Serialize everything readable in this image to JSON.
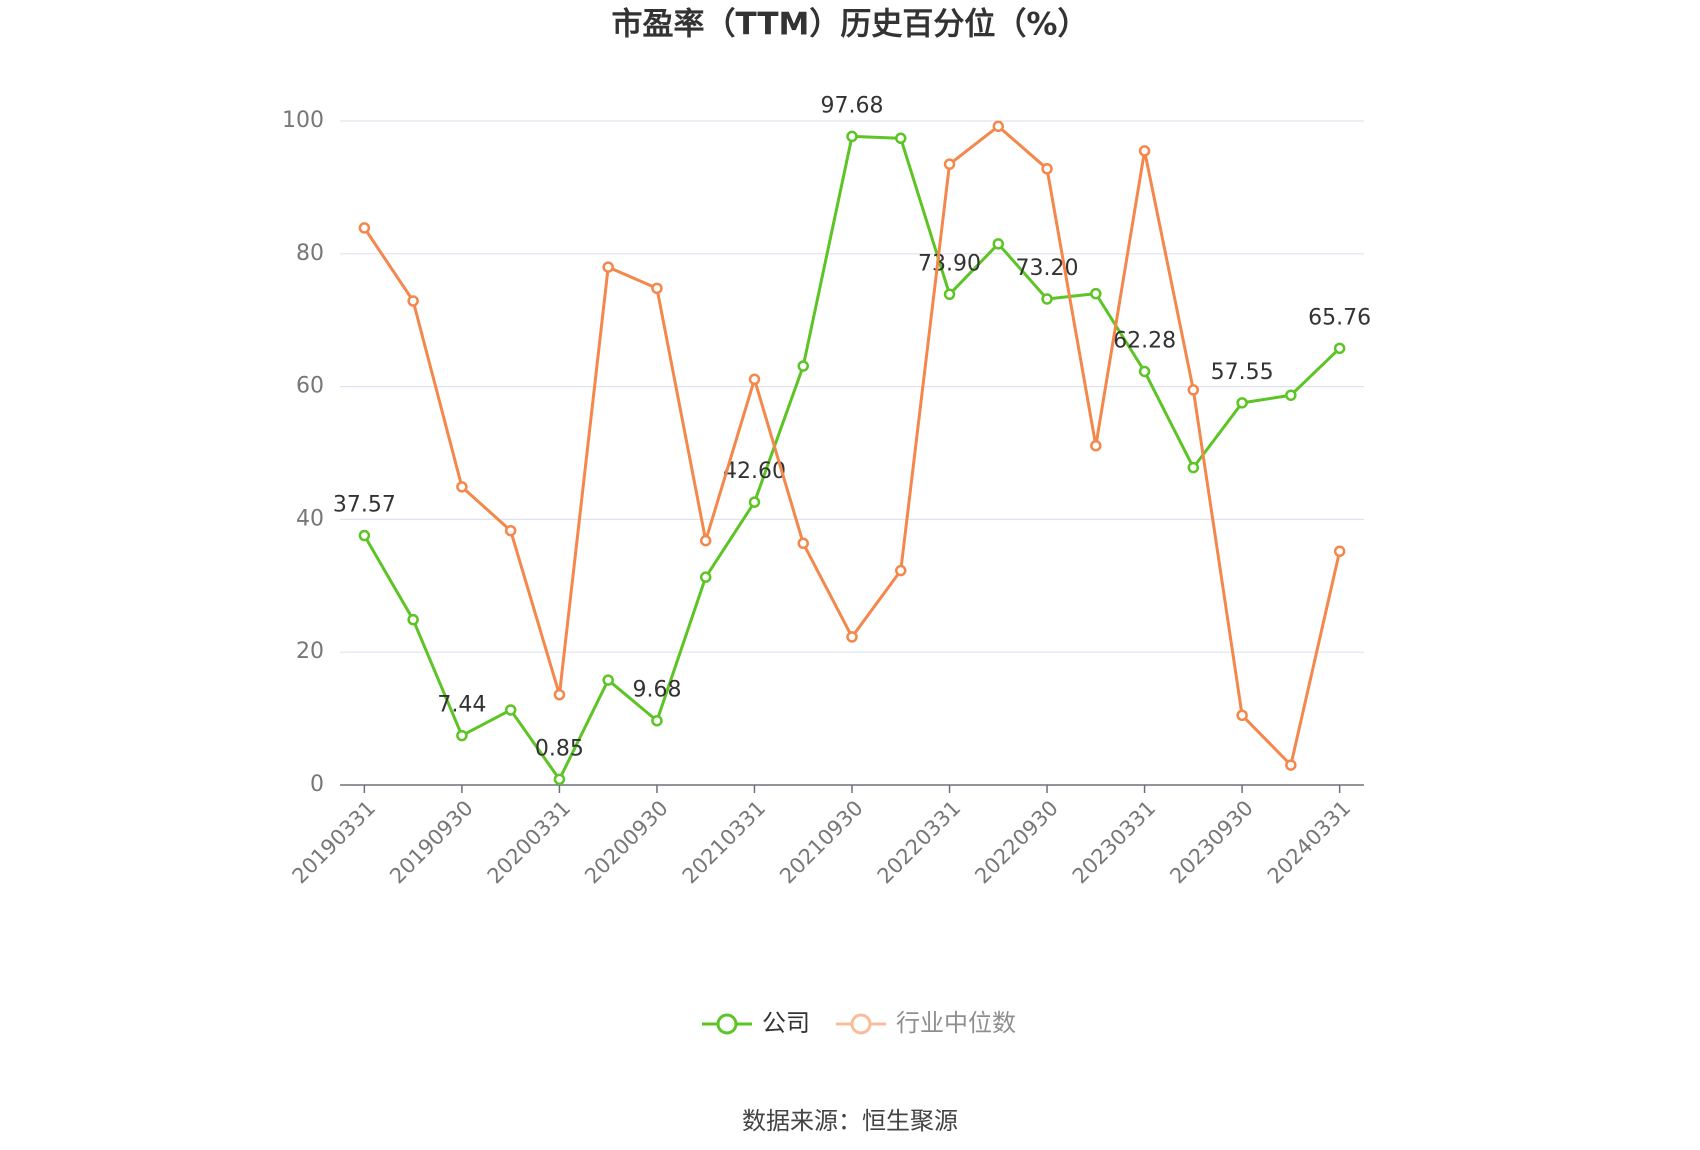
{
  "chart_data": {
    "type": "line",
    "title": "市盈率（TTM）历史百分位（%）",
    "source": "数据来源：恒生聚源",
    "categories": [
      "20190331",
      null,
      "20190930",
      null,
      "20200331",
      null,
      "20200930",
      null,
      "20210331",
      null,
      "20210930",
      null,
      "20220331",
      null,
      "20220930",
      null,
      "20230331",
      null,
      "20230930",
      null,
      "20240331"
    ],
    "series": [
      {
        "name": "公司",
        "color": "#5cc425",
        "values": [
          37.57,
          24.9,
          7.44,
          11.3,
          0.85,
          15.8,
          9.68,
          31.3,
          42.6,
          63.1,
          97.68,
          97.4,
          73.9,
          81.5,
          73.2,
          74.0,
          62.28,
          47.8,
          57.55,
          58.7,
          65.76
        ],
        "value_labels": [
          "37.57",
          null,
          "7.44",
          null,
          "0.85",
          null,
          "9.68",
          null,
          "42.60",
          null,
          "97.68",
          null,
          "73.90",
          null,
          "73.20",
          null,
          "62.28",
          null,
          "57.55",
          null,
          "65.76"
        ]
      },
      {
        "name": "行业中位数",
        "color": "#f4874b",
        "values": [
          83.9,
          72.9,
          44.9,
          38.3,
          13.6,
          78.0,
          74.8,
          36.8,
          61.1,
          36.4,
          22.3,
          32.3,
          93.5,
          99.2,
          92.8,
          51.1,
          95.5,
          59.5,
          10.5,
          3.0,
          35.2
        ]
      }
    ],
    "ylim": [
      0,
      100
    ],
    "yticks": [
      0,
      20,
      40,
      60,
      80,
      100
    ],
    "grid": true,
    "legend": "bottom"
  }
}
